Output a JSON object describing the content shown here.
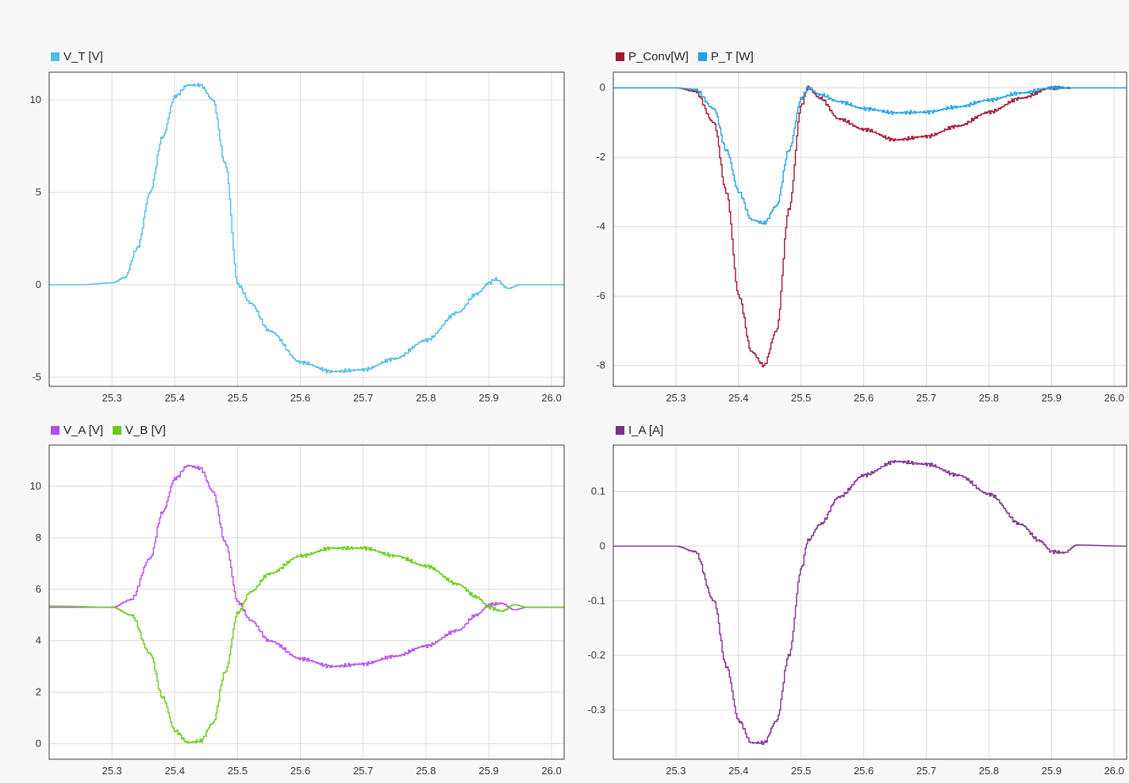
{
  "chart_data": [
    {
      "type": "line",
      "xlim": [
        25.2,
        26.02
      ],
      "ylim": [
        -5.5,
        11.5
      ],
      "xticks": [
        "25.3",
        "25.4",
        "25.5",
        "25.6",
        "25.7",
        "25.8",
        "25.9",
        "26.0"
      ],
      "yticks": [
        "-5",
        "0",
        "5",
        "10"
      ],
      "grid": true,
      "legend": "top-left",
      "series": [
        {
          "name": "V_T [V]",
          "color": "#4dbde8",
          "x": [
            25.2,
            25.25,
            25.3,
            25.32,
            25.34,
            25.36,
            25.38,
            25.4,
            25.42,
            25.44,
            25.46,
            25.48,
            25.5,
            25.52,
            25.55,
            25.6,
            25.65,
            25.7,
            25.75,
            25.8,
            25.85,
            25.88,
            25.9,
            25.91,
            25.93,
            25.95,
            26.02
          ],
          "y": [
            0,
            0,
            0.1,
            0.4,
            2.0,
            5.0,
            8.0,
            10.2,
            10.8,
            10.8,
            10.0,
            6.5,
            0.0,
            -1.0,
            -2.5,
            -4.2,
            -4.7,
            -4.6,
            -4.0,
            -3.0,
            -1.5,
            -0.5,
            0.1,
            0.3,
            -0.2,
            0.0,
            0.0
          ]
        }
      ]
    },
    {
      "type": "line",
      "xlim": [
        25.2,
        26.02
      ],
      "ylim": [
        -8.6,
        0.45
      ],
      "xticks": [
        "25.3",
        "25.4",
        "25.5",
        "25.6",
        "25.7",
        "25.8",
        "25.9",
        "26.0"
      ],
      "yticks": [
        "-8",
        "-6",
        "-4",
        "-2",
        "0"
      ],
      "grid": true,
      "legend": "top-left",
      "series": [
        {
          "name": "P_Conv[W]",
          "color": "#a2142f",
          "x": [
            25.2,
            25.3,
            25.33,
            25.36,
            25.38,
            25.4,
            25.42,
            25.44,
            25.46,
            25.48,
            25.5,
            25.51,
            25.53,
            25.56,
            25.6,
            25.65,
            25.7,
            25.75,
            25.8,
            25.85,
            25.9,
            26.02
          ],
          "y": [
            0,
            0,
            -0.1,
            -1.0,
            -3.0,
            -6.0,
            -7.6,
            -8.0,
            -7.0,
            -3.5,
            -0.5,
            0.0,
            -0.3,
            -0.9,
            -1.2,
            -1.5,
            -1.4,
            -1.1,
            -0.7,
            -0.3,
            0.0,
            0.0
          ]
        },
        {
          "name": "P_T [W]",
          "color": "#1fa2ea",
          "x": [
            25.2,
            25.3,
            25.33,
            25.36,
            25.38,
            25.4,
            25.42,
            25.44,
            25.46,
            25.48,
            25.5,
            25.51,
            25.53,
            25.56,
            25.6,
            25.65,
            25.7,
            25.75,
            25.8,
            25.85,
            25.9,
            26.02
          ],
          "y": [
            0,
            0,
            -0.05,
            -0.6,
            -1.8,
            -3.0,
            -3.8,
            -3.9,
            -3.4,
            -1.8,
            -0.3,
            0.0,
            -0.2,
            -0.4,
            -0.6,
            -0.72,
            -0.7,
            -0.55,
            -0.35,
            -0.15,
            0.0,
            0.0
          ]
        }
      ]
    },
    {
      "type": "line",
      "xlim": [
        25.2,
        26.02
      ],
      "ylim": [
        -0.6,
        11.6
      ],
      "xticks": [
        "25.3",
        "25.4",
        "25.5",
        "25.6",
        "25.7",
        "25.8",
        "25.9",
        "26.0"
      ],
      "yticks": [
        "0",
        "2",
        "4",
        "6",
        "8",
        "10"
      ],
      "grid": true,
      "legend": "top-left",
      "series": [
        {
          "name": "V_A [V]",
          "color": "#b74cf0",
          "x": [
            25.2,
            25.3,
            25.33,
            25.36,
            25.38,
            25.4,
            25.42,
            25.44,
            25.46,
            25.48,
            25.5,
            25.52,
            25.55,
            25.6,
            25.65,
            25.7,
            25.75,
            25.8,
            25.85,
            25.88,
            25.9,
            25.92,
            25.94,
            25.96,
            26.02
          ],
          "y": [
            5.3,
            5.3,
            5.6,
            7.2,
            9.0,
            10.3,
            10.8,
            10.7,
            9.8,
            7.8,
            5.5,
            4.8,
            4.0,
            3.3,
            3.0,
            3.1,
            3.4,
            3.8,
            4.4,
            5.0,
            5.4,
            5.45,
            5.2,
            5.3,
            5.3
          ]
        },
        {
          "name": "V_B [V]",
          "color": "#66cc1a",
          "x": [
            25.2,
            25.3,
            25.33,
            25.36,
            25.38,
            25.4,
            25.42,
            25.44,
            25.46,
            25.48,
            25.5,
            25.52,
            25.55,
            25.6,
            25.65,
            25.7,
            25.75,
            25.8,
            25.85,
            25.88,
            25.9,
            25.92,
            25.94,
            25.96,
            26.02
          ],
          "y": [
            5.35,
            5.3,
            5.0,
            3.5,
            1.8,
            0.5,
            0.05,
            0.1,
            0.8,
            2.8,
            5.1,
            5.9,
            6.6,
            7.3,
            7.6,
            7.6,
            7.3,
            6.9,
            6.2,
            5.7,
            5.3,
            5.15,
            5.4,
            5.3,
            5.3
          ]
        }
      ]
    },
    {
      "type": "line",
      "xlim": [
        25.2,
        26.02
      ],
      "ylim": [
        -0.39,
        0.185
      ],
      "xticks": [
        "25.3",
        "25.4",
        "25.5",
        "25.6",
        "25.7",
        "25.8",
        "25.9",
        "26.0"
      ],
      "yticks": [
        "-0.3",
        "-0.2",
        "-0.1",
        "0",
        "0.1"
      ],
      "grid": true,
      "legend": "top-left",
      "series": [
        {
          "name": "I_A [A]",
          "color": "#7e2f8e",
          "x": [
            25.2,
            25.3,
            25.33,
            25.36,
            25.38,
            25.4,
            25.42,
            25.44,
            25.46,
            25.48,
            25.5,
            25.51,
            25.53,
            25.56,
            25.6,
            25.65,
            25.7,
            25.75,
            25.8,
            25.85,
            25.88,
            25.9,
            25.92,
            25.94,
            26.02
          ],
          "y": [
            0,
            0,
            -0.01,
            -0.1,
            -0.22,
            -0.32,
            -0.36,
            -0.36,
            -0.32,
            -0.2,
            -0.04,
            0.01,
            0.04,
            0.09,
            0.13,
            0.155,
            0.15,
            0.13,
            0.095,
            0.04,
            0.01,
            -0.01,
            -0.012,
            0.002,
            0.0
          ]
        }
      ]
    }
  ]
}
